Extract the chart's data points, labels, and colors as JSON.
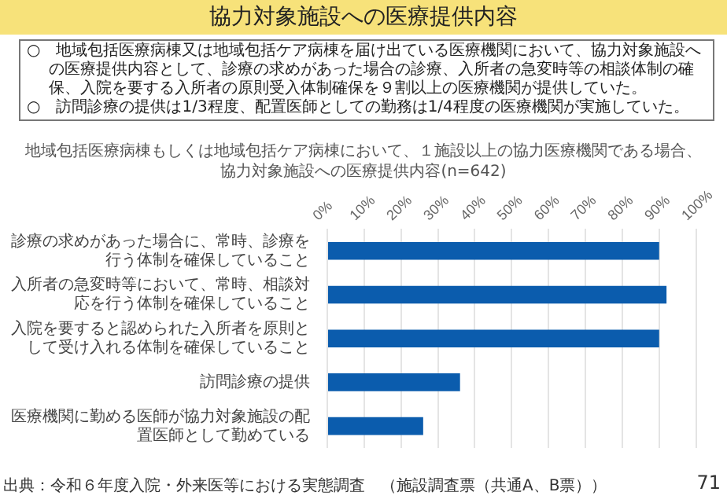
{
  "chart_data": {
    "type": "bar",
    "orientation": "horizontal",
    "title": "協力対象施設への医療提供内容(n=642)",
    "subtitle": "地域包括医療病棟もしくは地域包括ケア病棟において、１施設以上の協力医療機関である場合、",
    "annotations": [
      "協力対象施設への医療提供内容",
      "○　地域包括医療病棟又は地域包括ケア病棟を届け出ている医療機関において、協力対象施設への医療提供内容として、診療の求めがあった場合の診療、入所者の急変時等の相談体制の確保、入院を要する入所者の原則受入体制確保を９割以上の医療機関が提供していた。",
      "○　訪問診療の提供は1/3程度、配置医師としての勤務は1/4程度の医療機関が実施していた。",
      "出典：令和６年度入院・外来医等における実態調査　（施設調査票（共通A、B票））",
      "71"
    ],
    "categories": [
      "診療の求めがあった場合に、常時、診療を行う体制を確保していること",
      "入所者の急変時等において、常時、相談対応を行う体制を確保していること",
      "入院を要すると認められた入所者を原則として受け入れる体制を確保していること",
      "訪問診療の提供",
      "医療機関に勤める医師が協力対象施設の配置医師として勤めている"
    ],
    "values": [
      90,
      92,
      90,
      36,
      26
    ],
    "color": "#0b5cad",
    "xlim": [
      0,
      100
    ],
    "xticks": [
      {
        "value": 0,
        "label": "0%"
      },
      {
        "value": 10,
        "label": "10%"
      },
      {
        "value": 20,
        "label": "20%"
      },
      {
        "value": 30,
        "label": "30%"
      },
      {
        "value": 40,
        "label": "40%"
      },
      {
        "value": 50,
        "label": "50%"
      },
      {
        "value": 60,
        "label": "60%"
      },
      {
        "value": 70,
        "label": "70%"
      },
      {
        "value": 80,
        "label": "80%"
      },
      {
        "value": 90,
        "label": "90%"
      },
      {
        "value": 100,
        "label": "100%"
      }
    ],
    "grid": "x"
  }
}
